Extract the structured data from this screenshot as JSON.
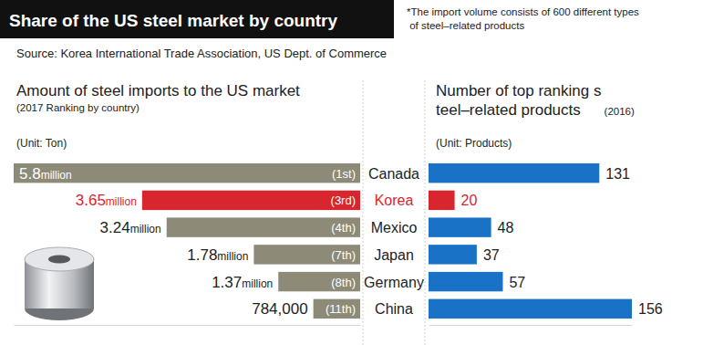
{
  "title": "Share of the US steel market by country",
  "note": "*The import volume consists of 600 different types\n of steel–related products",
  "source": "Source: Korea International Trade Association, US Dept. of Commerce",
  "chart_data": [
    {
      "type": "bar",
      "orientation": "horizontal",
      "title": "Amount of steel imports to the US market",
      "subtitle": "(2017 Ranking by country)",
      "xlabel": "(Unit: Ton)",
      "categories": [
        "Canada",
        "Korea",
        "Mexico",
        "Japan",
        "Germany",
        "China"
      ],
      "values": [
        5800000,
        3650000,
        3240000,
        1780000,
        1370000,
        784000
      ],
      "value_labels": [
        "5.8million",
        "3.65million",
        "3.24million",
        "1.78million",
        "1.37million",
        "784,000"
      ],
      "rank_labels": [
        "(1st)",
        "(3rd)",
        "(4th)",
        "(7th)",
        "(8th)",
        "(11th)"
      ],
      "colors": [
        "#8d8a78",
        "#d8262e",
        "#8d8a78",
        "#8d8a78",
        "#8d8a78",
        "#8d8a78"
      ],
      "xlim": [
        0,
        5800000
      ],
      "tick_labels": false,
      "data_labels": true
    },
    {
      "type": "bar",
      "orientation": "horizontal",
      "title": "Number of top ranking s\nteel–related products",
      "subtitle": "(2016)",
      "xlabel": "(Unit: Products)",
      "categories": [
        "Canada",
        "Korea",
        "Mexico",
        "Japan",
        "Germany",
        "China"
      ],
      "values": [
        131,
        20,
        48,
        37,
        57,
        156
      ],
      "colors": [
        "#1a72c6",
        "#d8262e",
        "#1a72c6",
        "#1a72c6",
        "#1a72c6",
        "#1a72c6"
      ],
      "xlim": [
        0,
        156
      ],
      "tick_labels": false,
      "data_labels": true
    }
  ]
}
